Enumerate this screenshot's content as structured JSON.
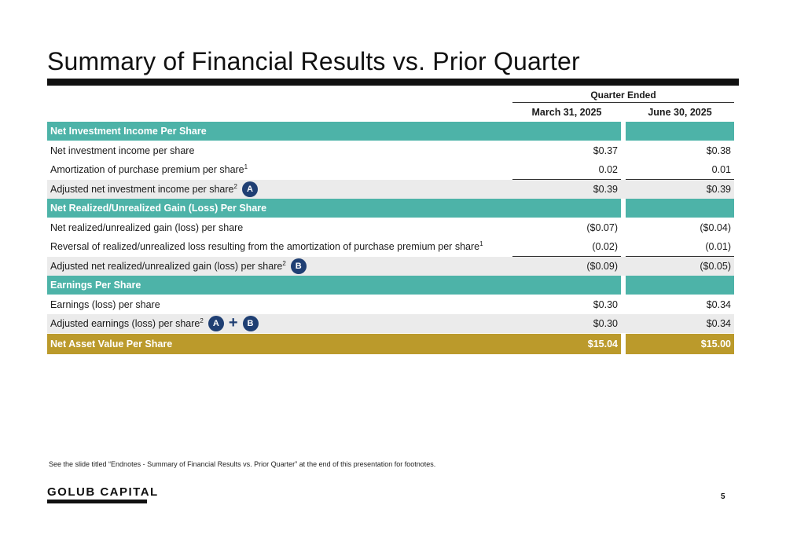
{
  "title": "Summary of Financial Results vs. Prior Quarter",
  "table": {
    "group_header": "Quarter Ended",
    "columns": [
      "March 31, 2025",
      "June 30, 2025"
    ],
    "rows": [
      {
        "type": "section",
        "label": "Net Investment Income Per Share"
      },
      {
        "type": "data",
        "label": "Net investment income per share",
        "sup": "",
        "values": [
          "$0.37",
          "$0.38"
        ]
      },
      {
        "type": "data",
        "label": "Amortization of purchase premium per share",
        "sup": "1",
        "values": [
          "0.02",
          "0.01"
        ]
      },
      {
        "type": "adjusted",
        "label": "Adjusted net investment income per share",
        "sup": "2",
        "badges": [
          "A"
        ],
        "values": [
          "$0.39",
          "$0.39"
        ]
      },
      {
        "type": "section",
        "label": "Net Realized/Unrealized Gain (Loss) Per Share"
      },
      {
        "type": "data",
        "label": "Net realized/unrealized gain (loss) per share",
        "sup": "",
        "values": [
          "($0.07)",
          "($0.04)"
        ]
      },
      {
        "type": "data",
        "label": "Reversal of realized/unrealized loss resulting from the amortization of purchase premium per share",
        "sup": "1",
        "values": [
          "(0.02)",
          "(0.01)"
        ]
      },
      {
        "type": "adjusted",
        "label": "Adjusted net realized/unrealized gain (loss) per share",
        "sup": "2",
        "badges": [
          "B"
        ],
        "values": [
          "($0.09)",
          "($0.05)"
        ]
      },
      {
        "type": "section",
        "label": "Earnings Per Share"
      },
      {
        "type": "data",
        "label": "Earnings (loss) per share",
        "sup": "",
        "values": [
          "$0.30",
          "$0.34"
        ]
      },
      {
        "type": "adjusted-plain",
        "label": "Adjusted earnings (loss) per share",
        "sup": "2",
        "badges": [
          "A",
          "B"
        ],
        "plus": "+",
        "values": [
          "$0.30",
          "$0.34"
        ]
      },
      {
        "type": "gold",
        "label": "Net Asset Value Per Share",
        "values": [
          "$15.04",
          "$15.00"
        ]
      }
    ]
  },
  "footnote": "See the slide titled “Endnotes - Summary of Financial Results vs. Prior Quarter” at the end of this presentation for footnotes.",
  "brand": "GOLUB CAPITAL",
  "page_number": "5",
  "colors": {
    "section_teal": "#4db3a8",
    "nav_gold": "#bb9a2b",
    "badge_navy": "#1f3f73",
    "shaded_row": "#ebebeb"
  }
}
